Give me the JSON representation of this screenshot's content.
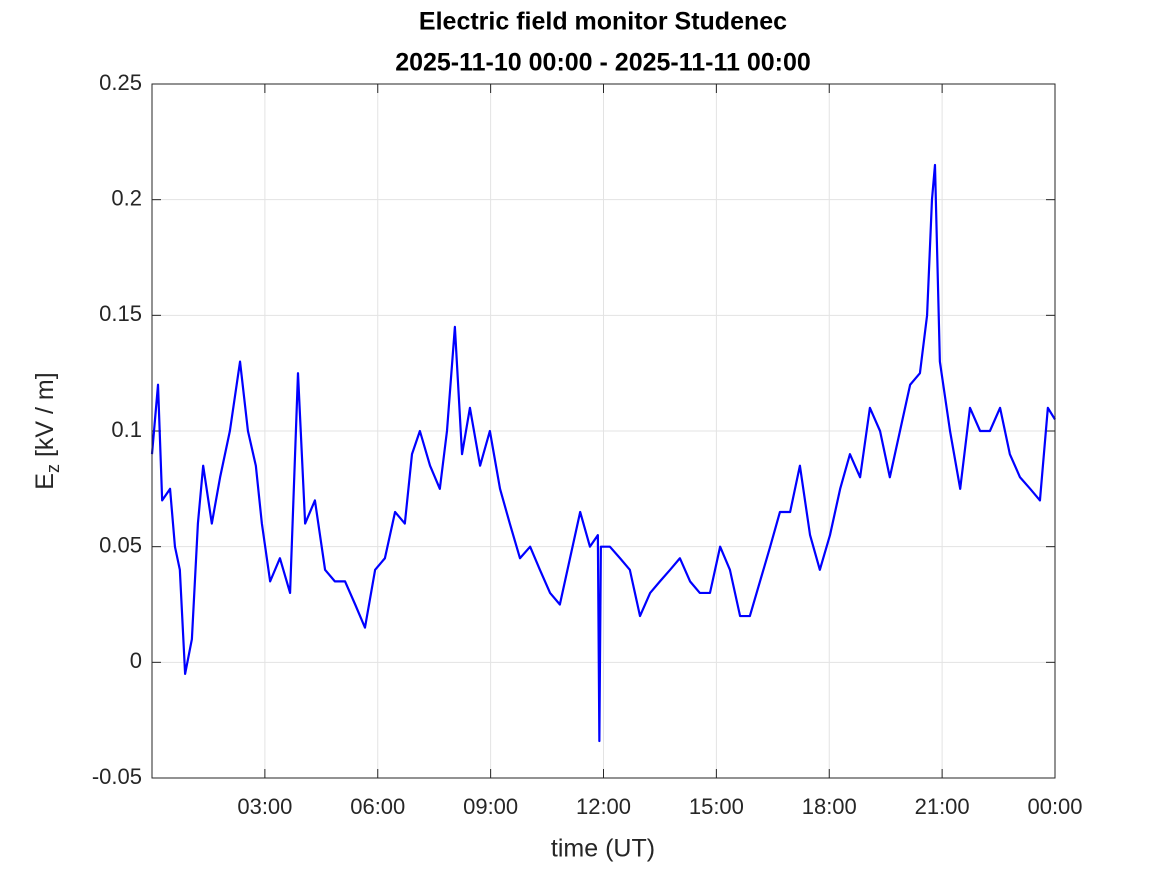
{
  "chart_data": {
    "type": "line",
    "title": "Electric field monitor Studenec",
    "subtitle": "2025-11-10 00:00 - 2025-11-11 00:00",
    "xlabel": "time (UT)",
    "ylabel": {
      "main": "E",
      "sub": "z",
      "rest": " [kV / m]"
    },
    "xlim": [
      0,
      24
    ],
    "xticks": [
      {
        "value": 3,
        "label": "03:00"
      },
      {
        "value": 6,
        "label": "06:00"
      },
      {
        "value": 9,
        "label": "09:00"
      },
      {
        "value": 12,
        "label": "12:00"
      },
      {
        "value": 15,
        "label": "15:00"
      },
      {
        "value": 18,
        "label": "18:00"
      },
      {
        "value": 21,
        "label": "21:00"
      },
      {
        "value": 24,
        "label": "00:00"
      }
    ],
    "ylim": [
      -0.05,
      0.25
    ],
    "yticks": [
      -0.05,
      0,
      0.05,
      0.1,
      0.15,
      0.2,
      0.25
    ],
    "grid": true,
    "x": [
      0,
      0.16,
      0.27,
      0.48,
      0.61,
      0.74,
      0.88,
      1.06,
      1.22,
      1.36,
      1.59,
      1.81,
      2.07,
      2.34,
      2.55,
      2.76,
      2.92,
      3.14,
      3.4,
      3.67,
      3.88,
      4.07,
      4.33,
      4.6,
      4.86,
      5.13,
      5.4,
      5.66,
      5.93,
      6.19,
      6.46,
      6.72,
      6.91,
      7.12,
      7.39,
      7.65,
      7.84,
      8.05,
      8.24,
      8.45,
      8.72,
      8.98,
      9.25,
      9.51,
      9.78,
      10.05,
      10.31,
      10.58,
      10.84,
      11.11,
      11.38,
      11.64,
      11.85,
      11.89,
      11.93,
      12.17,
      12.44,
      12.7,
      12.97,
      13.24,
      13.5,
      13.77,
      14.03,
      14.3,
      14.56,
      14.83,
      15.1,
      15.36,
      15.63,
      15.89,
      16.16,
      16.43,
      16.69,
      16.96,
      17.22,
      17.49,
      17.75,
      18.02,
      18.29,
      18.55,
      18.82,
      19.08,
      19.35,
      19.61,
      19.88,
      20.15,
      20.41,
      20.6,
      20.73,
      20.81,
      20.94,
      21.21,
      21.48,
      21.74,
      22.01,
      22.27,
      22.54,
      22.8,
      23.07,
      23.34,
      23.6,
      23.81,
      24
    ],
    "series": [
      {
        "name": "Ez",
        "color": "#0000ff",
        "values": [
          0.09,
          0.12,
          0.07,
          0.075,
          0.05,
          0.04,
          -0.005,
          0.01,
          0.06,
          0.085,
          0.06,
          0.08,
          0.1,
          0.13,
          0.1,
          0.085,
          0.06,
          0.035,
          0.045,
          0.03,
          0.125,
          0.06,
          0.07,
          0.04,
          0.035,
          0.035,
          0.025,
          0.015,
          0.04,
          0.045,
          0.065,
          0.06,
          0.09,
          0.1,
          0.085,
          0.075,
          0.1,
          0.145,
          0.09,
          0.11,
          0.085,
          0.1,
          0.075,
          0.06,
          0.045,
          0.05,
          0.04,
          0.03,
          0.025,
          0.045,
          0.065,
          0.05,
          0.055,
          -0.034,
          0.05,
          0.05,
          0.045,
          0.04,
          0.02,
          0.03,
          0.035,
          0.04,
          0.045,
          0.035,
          0.03,
          0.03,
          0.05,
          0.04,
          0.02,
          0.02,
          0.035,
          0.05,
          0.065,
          0.065,
          0.085,
          0.055,
          0.04,
          0.055,
          0.075,
          0.09,
          0.08,
          0.11,
          0.1,
          0.08,
          0.1,
          0.12,
          0.125,
          0.15,
          0.2,
          0.215,
          0.13,
          0.1,
          0.075,
          0.11,
          0.1,
          0.1,
          0.11,
          0.09,
          0.08,
          0.075,
          0.07,
          0.11,
          0.105
        ]
      }
    ]
  }
}
